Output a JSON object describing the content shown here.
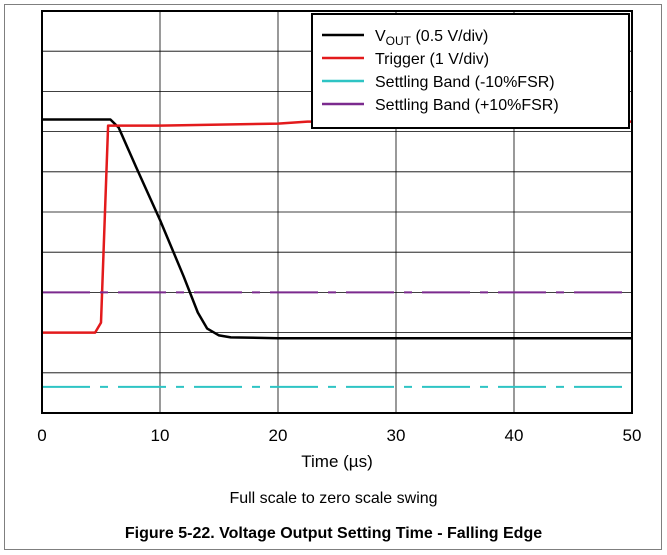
{
  "chart_data": {
    "type": "line",
    "title": "Figure 5-22. Voltage Output Setting Time - Falling Edge",
    "subtitle": "Full scale to zero scale swing",
    "xlabel": "Time (µs)",
    "ylabel": "",
    "xlim": [
      0,
      50
    ],
    "x_ticks": [
      "0",
      "10",
      "20",
      "30",
      "40",
      "50"
    ],
    "y_divisions": 10,
    "ylim": [
      0,
      10
    ],
    "grid": true,
    "legend_position": "top-right",
    "series": [
      {
        "name": "V_OUT (0.5 V/div)",
        "name_main": "V",
        "name_sub": "OUT",
        "name_rest": " (0.5 V/div)",
        "color": "#000000",
        "style": "solid",
        "points": [
          [
            0,
            7.3
          ],
          [
            5.8,
            7.3
          ],
          [
            6.5,
            7.1
          ],
          [
            8.0,
            6.1
          ],
          [
            10.0,
            4.8
          ],
          [
            12.0,
            3.4
          ],
          [
            13.2,
            2.5
          ],
          [
            14.0,
            2.1
          ],
          [
            15.0,
            1.93
          ],
          [
            16.0,
            1.88
          ],
          [
            20.0,
            1.86
          ],
          [
            30.0,
            1.86
          ],
          [
            40.0,
            1.86
          ],
          [
            50.0,
            1.86
          ]
        ]
      },
      {
        "name": "Trigger (1 V/div)",
        "color": "#e31a1c",
        "style": "solid",
        "points": [
          [
            0,
            2.0
          ],
          [
            4.5,
            2.0
          ],
          [
            5.0,
            2.25
          ],
          [
            5.6,
            7.15
          ],
          [
            10.0,
            7.15
          ],
          [
            20.0,
            7.2
          ],
          [
            22.5,
            7.25
          ],
          [
            50.0,
            7.25
          ]
        ]
      },
      {
        "name": "Settling Band (-10%FSR)",
        "color": "#2ec4c4",
        "style": "dashdot",
        "points": [
          [
            0,
            0.65
          ],
          [
            50,
            0.65
          ]
        ]
      },
      {
        "name": "Settling Band (+10%FSR)",
        "color": "#7b2a8e",
        "style": "dashdot",
        "points": [
          [
            0,
            3.0
          ],
          [
            50,
            3.0
          ]
        ]
      }
    ]
  }
}
